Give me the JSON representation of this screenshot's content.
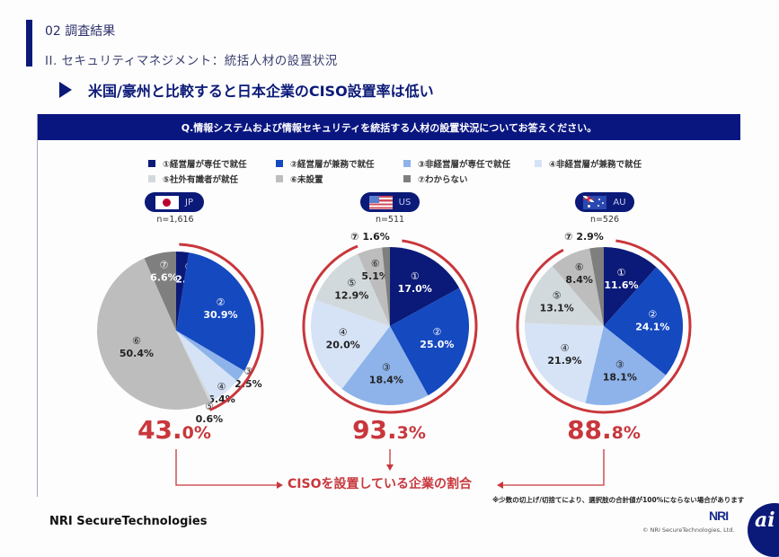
{
  "header": {
    "section": "02 調査結果",
    "subsection": "II. セキュリティマネジメント：統括人材の設置状況",
    "headline": "米国/豪州と比較すると日本企業のCISO設置率は低い"
  },
  "question": "Q.情報システムおよび情報セキュリティを統括する人材の設置状況についてお答えください。",
  "colors": {
    "c1": "#0b1a78",
    "c2": "#1549c0",
    "c3": "#8db3ea",
    "c4": "#d6e3f6",
    "c5": "#d2d9dc",
    "c6": "#bdbdbd",
    "c7": "#7f7f7f",
    "accent_red": "#c8373c",
    "navy": "#0b1a78"
  },
  "chart_data": {
    "type": "pie",
    "title": "Q.情報システムおよび情報セキュリティを統括する人材の設置状況についてお答えください。",
    "legend_position": "top",
    "categories": [
      {
        "marker": "①",
        "label": "①経営層が専任で就任"
      },
      {
        "marker": "②",
        "label": "②経営層が兼務で就任"
      },
      {
        "marker": "③",
        "label": "③非経営層が専任で就任"
      },
      {
        "marker": "④",
        "label": "④非経営層が兼務で就任"
      },
      {
        "marker": "⑤",
        "label": "⑤社外有識者が就任"
      },
      {
        "marker": "⑥",
        "label": "⑥未設置"
      },
      {
        "marker": "⑦",
        "label": "⑦わからない"
      }
    ],
    "series": [
      {
        "name": "JP",
        "n_label": "n=1,616",
        "values": [
          2.6,
          30.9,
          2.5,
          6.4,
          0.6,
          50.4,
          6.6
        ],
        "labels": [
          "2.6%",
          "30.9%",
          "2.5%",
          "6.4%",
          "0.6%",
          "50.4%",
          "6.6%"
        ],
        "ciso_rate_main": "43.",
        "ciso_rate_decimal": "0%",
        "ciso_rate": 43.0
      },
      {
        "name": "US",
        "n_label": "n=511",
        "values": [
          17.0,
          25.0,
          18.4,
          20.0,
          12.9,
          5.1,
          1.6
        ],
        "labels": [
          "17.0%",
          "25.0%",
          "18.4%",
          "20.0%",
          "12.9%",
          "5.1%",
          "1.6%"
        ],
        "ciso_rate_main": "93.",
        "ciso_rate_decimal": "3%",
        "ciso_rate": 93.3
      },
      {
        "name": "AU",
        "n_label": "n=526",
        "values": [
          11.6,
          24.1,
          18.1,
          21.9,
          13.1,
          8.4,
          2.9
        ],
        "labels": [
          "11.6%",
          "24.1%",
          "18.1%",
          "21.9%",
          "13.1%",
          "8.4%",
          "2.9%"
        ],
        "ciso_rate_main": "88.",
        "ciso_rate_decimal": "8%",
        "ciso_rate": 88.8
      }
    ],
    "caption": "CISOを設置している企業の割合"
  },
  "footer": {
    "note": "※少数の切上げ/切捨てにより、選択肢の合計値が100%にならない場合があります",
    "brand": "NRI SecureTechnologies",
    "nri_logo": "NRI",
    "copyright": "© NRI SecureTechnologies, Ltd.",
    "ai_logo": "ai"
  }
}
